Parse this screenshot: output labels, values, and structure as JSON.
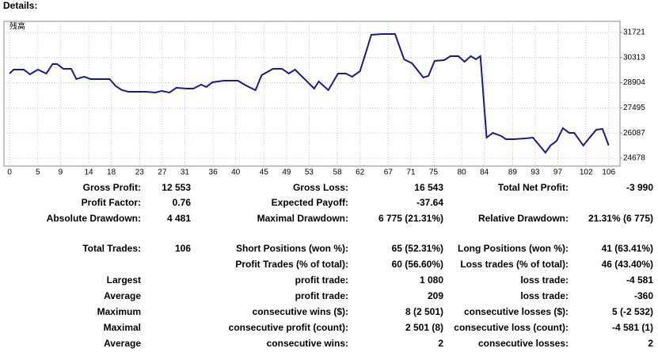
{
  "heading": "Details:",
  "chart_data": {
    "type": "line",
    "xlim": [
      -1,
      108
    ],
    "ylim": [
      24235,
      32340
    ],
    "xticks": [
      0,
      5,
      9,
      14,
      18,
      23,
      27,
      31,
      36,
      40,
      45,
      49,
      53,
      58,
      62,
      67,
      71,
      75,
      80,
      84,
      89,
      93,
      97,
      102,
      106
    ],
    "yticks": [
      24678,
      26087,
      27495,
      28904,
      30313,
      31721
    ],
    "grid": true,
    "x": [
      0,
      0.7,
      2.5,
      3.6,
      5.0,
      6.5,
      7.6,
      8.4,
      9.5,
      10.9,
      11.8,
      13.2,
      14.3,
      15.4,
      17.7,
      18.8,
      19.9,
      21.0,
      24.1,
      25.8,
      26.9,
      28.3,
      29.5,
      31.4,
      32.5,
      33.9,
      34.8,
      35.9,
      37.9,
      40.4,
      41.8,
      43.5,
      44.6,
      46.6,
      48.2,
      49.4,
      50.5,
      52.2,
      53.9,
      54.7,
      56.4,
      58.1,
      59.5,
      60.6,
      62.0,
      63.1,
      64.0,
      65.9,
      68.2,
      69.8,
      71.2,
      72.1,
      73.2,
      74.1,
      75.2,
      76.9,
      78.0,
      79.4,
      80.5,
      81.6,
      82.5,
      83.3,
      84.4,
      85.5,
      87.0,
      87.8,
      89.2,
      91.2,
      92.6,
      94.0,
      94.8,
      95.7,
      96.8,
      97.9,
      99.0,
      99.9,
      101.5,
      102.4,
      103.8,
      104.9,
      105.7,
      106
    ],
    "series": [
      {
        "name": "残高",
        "color": "#1a1a8c",
        "values": [
          29418,
          29639,
          29639,
          29374,
          29639,
          29418,
          29949,
          29949,
          29684,
          29684,
          29108,
          29241,
          29108,
          29108,
          29108,
          28709,
          28488,
          28399,
          28399,
          28355,
          28444,
          28355,
          28621,
          28576,
          28576,
          28798,
          28665,
          28931,
          29019,
          29019,
          28754,
          28488,
          29329,
          29684,
          29684,
          29418,
          29639,
          29108,
          28576,
          28975,
          28488,
          29418,
          29418,
          29241,
          29551,
          30658,
          31588,
          31632,
          31632,
          30215,
          29994,
          29639,
          29196,
          29285,
          30127,
          30171,
          30392,
          30392,
          30082,
          30392,
          30215,
          30392,
          25830,
          26096,
          25919,
          25742,
          25742,
          25786,
          25830,
          25299,
          24989,
          25388,
          25653,
          26362,
          26096,
          26096,
          25388,
          25742,
          26273,
          26318,
          25653,
          25388
        ]
      }
    ]
  },
  "stats": {
    "rows": [
      {
        "label": "Gross Profit:",
        "value": "12 553",
        "label2": "Gross Loss:",
        "value2": "16 543",
        "label3": "Total Net Profit:",
        "value3": "-3 990"
      },
      {
        "label": "Profit Factor:",
        "value": "0.76",
        "label2": "Expected Payoff:",
        "value2": "-37.64"
      },
      {
        "label": "Absolute Drawdown:",
        "value": "4 481",
        "label2": "Maximal Drawdown:",
        "value2": "6 775 (21.31%)",
        "label3": "Relative Drawdown:",
        "value3": "21.31% (6 775)"
      },
      {
        "label": "Total Trades:",
        "value": "106",
        "label2": "Short Positions (won %):",
        "value2": "65 (52.31%)",
        "label3": "Long Positions (won %):",
        "value3": "41 (63.41%)"
      },
      {
        "label2": "Profit Trades (% of total):",
        "value2": "60 (56.60%)",
        "label3": "Loss trades (% of total):",
        "value3": "46 (43.40%)"
      },
      {
        "label": "Largest",
        "label2": "profit trade:",
        "value2": "1 080",
        "label3": "loss trade:",
        "value3": "-4 581"
      },
      {
        "label": "Average",
        "label2": "profit trade:",
        "value2": "209",
        "label3": "loss trade:",
        "value3": "-360"
      },
      {
        "label": "Maximum",
        "label2": "consecutive wins ($):",
        "value2": "8 (2 501)",
        "label3": "consecutive losses ($):",
        "value3": "5 (-2 532)"
      },
      {
        "label": "Maximal",
        "label2": "consecutive profit (count):",
        "value2": "2 501 (8)",
        "label3": "consecutive loss (count):",
        "value3": "-4 581 (1)"
      },
      {
        "label": "Average",
        "label2": "consecutive wins:",
        "value2": "2",
        "label3": "consecutive losses:",
        "value3": "2"
      }
    ]
  }
}
